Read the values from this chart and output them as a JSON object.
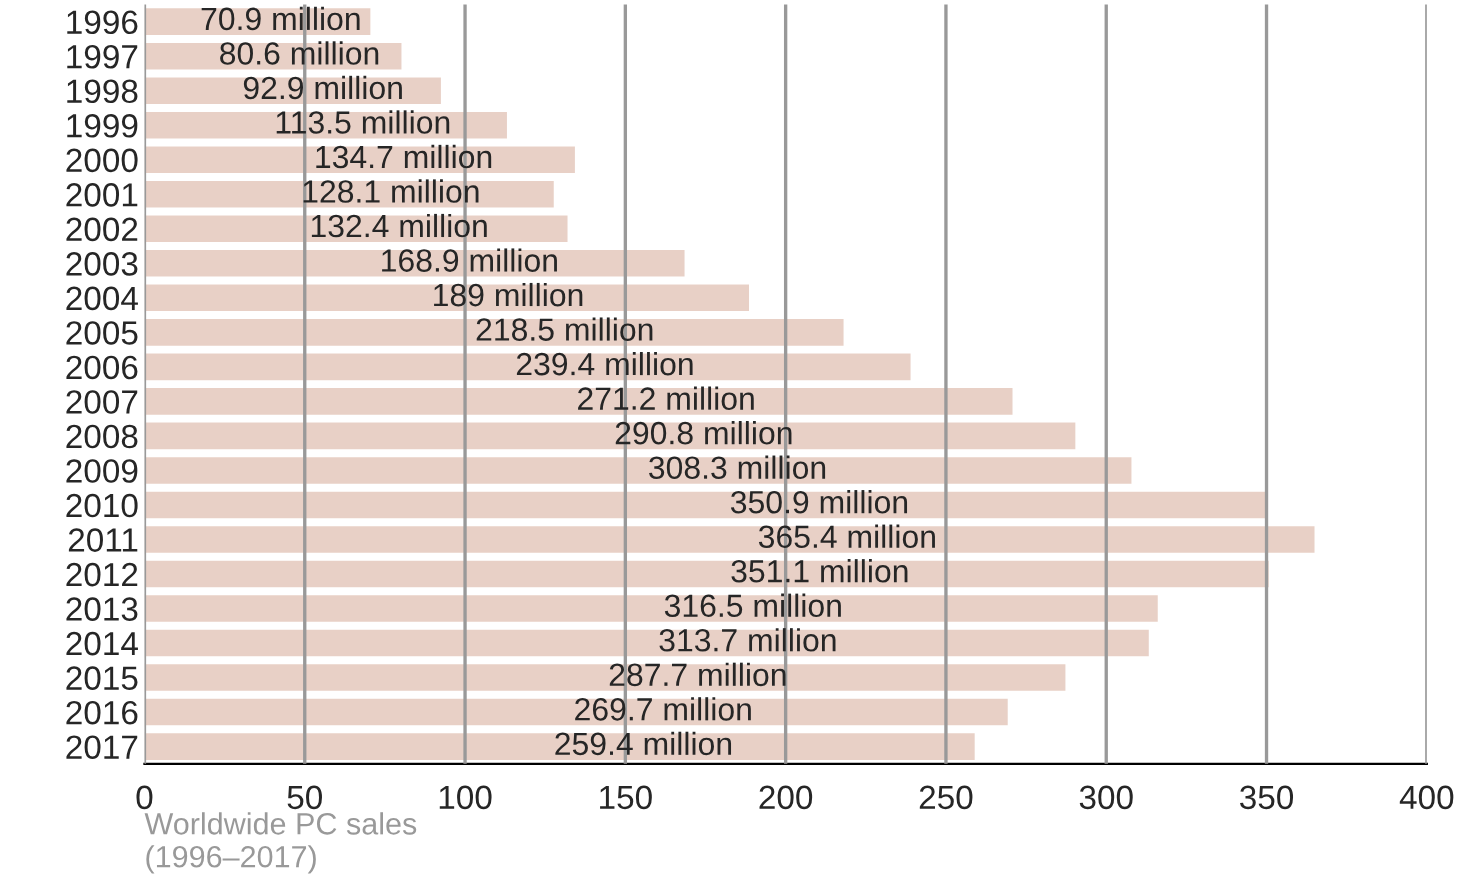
{
  "chart_data": {
    "type": "bar",
    "orientation": "horizontal",
    "categories": [
      "1996",
      "1997",
      "1998",
      "1999",
      "2000",
      "2001",
      "2002",
      "2003",
      "2004",
      "2005",
      "2006",
      "2007",
      "2008",
      "2009",
      "2010",
      "2011",
      "2012",
      "2013",
      "2014",
      "2015",
      "2016",
      "2017"
    ],
    "values": [
      70.9,
      80.6,
      92.9,
      113.5,
      134.7,
      128.1,
      132.4,
      168.9,
      189,
      218.5,
      239.4,
      271.2,
      290.8,
      308.3,
      350.9,
      365.4,
      351.1,
      316.5,
      313.7,
      287.7,
      269.7,
      259.4
    ],
    "value_labels": [
      "70.9 million",
      "80.6 million",
      "92.9 million",
      "113.5 million",
      "134.7 million",
      "128.1 million",
      "132.4 million",
      "168.9 million",
      "189 million",
      "218.5 million",
      "239.4 million",
      "271.2 million",
      "290.8 million",
      "308.3 million",
      "350.9 million",
      "365.4 million",
      "351.1 million",
      "316.5 million",
      "313.7 million",
      "287.7 million",
      "269.7 million",
      "259.4 million"
    ],
    "color": "#e8d0c6",
    "xlim": [
      0,
      400
    ],
    "xticks": [
      0,
      50,
      100,
      150,
      200,
      250,
      300,
      350,
      400
    ],
    "xlabel": "Worldwide PC sales\n(1996–2017)",
    "grid": "x"
  }
}
